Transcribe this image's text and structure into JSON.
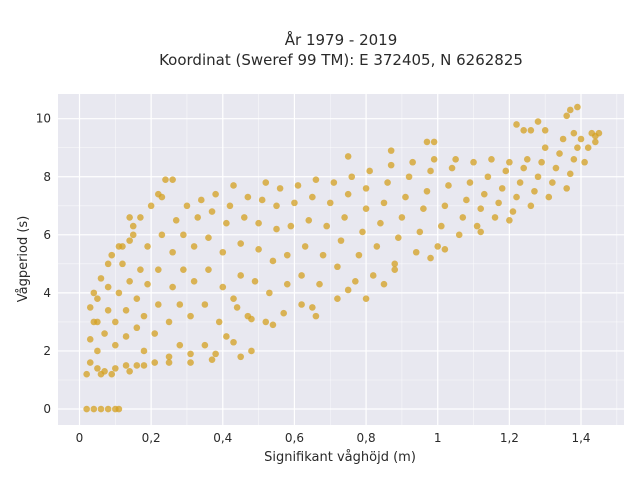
{
  "chart_data": {
    "type": "scatter",
    "title_line1": "År 1979 - 2019",
    "title_line2": "Koordinat (Sweref 99 TM): E 372405, N 6262825",
    "xlabel": "Signifikant våghöjd (m)",
    "ylabel": "Vågperiod (s)",
    "xlim": [
      -0.06,
      1.52
    ],
    "ylim": [
      -0.55,
      10.85
    ],
    "x_ticks": [
      0,
      0.2,
      0.4,
      0.6,
      0.8,
      1.0,
      1.2,
      1.4
    ],
    "x_tick_labels": [
      "0",
      "0,2",
      "0,4",
      "0,6",
      "0,8",
      "1",
      "1,2",
      "1,4"
    ],
    "y_ticks": [
      0,
      2,
      4,
      6,
      8,
      10
    ],
    "y_tick_labels": [
      "0",
      "2",
      "4",
      "6",
      "8",
      "10"
    ],
    "grid": true,
    "colors": {
      "marker": "#d4a020",
      "plot_background": "#e8e8f0",
      "grid": "#ffffff"
    },
    "series": [
      {
        "points": [
          [
            0.02,
            0.0
          ],
          [
            0.04,
            0.0
          ],
          [
            0.06,
            0.0
          ],
          [
            0.08,
            0.0
          ],
          [
            0.1,
            0.0
          ],
          [
            0.11,
            0.0
          ],
          [
            0.02,
            1.2
          ],
          [
            0.03,
            1.6
          ],
          [
            0.03,
            2.4
          ],
          [
            0.03,
            3.5
          ],
          [
            0.04,
            4.0
          ],
          [
            0.05,
            1.4
          ],
          [
            0.05,
            2.0
          ],
          [
            0.05,
            3.0
          ],
          [
            0.06,
            4.5
          ],
          [
            0.07,
            1.3
          ],
          [
            0.07,
            2.6
          ],
          [
            0.08,
            3.4
          ],
          [
            0.08,
            4.2
          ],
          [
            0.09,
            5.3
          ],
          [
            0.1,
            1.4
          ],
          [
            0.1,
            2.2
          ],
          [
            0.1,
            3.0
          ],
          [
            0.11,
            4.0
          ],
          [
            0.12,
            5.0
          ],
          [
            0.12,
            5.6
          ],
          [
            0.13,
            1.5
          ],
          [
            0.13,
            2.5
          ],
          [
            0.13,
            3.4
          ],
          [
            0.14,
            4.4
          ],
          [
            0.14,
            5.8
          ],
          [
            0.15,
            6.3
          ],
          [
            0.16,
            1.5
          ],
          [
            0.16,
            2.8
          ],
          [
            0.16,
            3.8
          ],
          [
            0.17,
            4.8
          ],
          [
            0.17,
            6.6
          ],
          [
            0.18,
            2.0
          ],
          [
            0.18,
            3.2
          ],
          [
            0.19,
            4.3
          ],
          [
            0.19,
            5.6
          ],
          [
            0.2,
            7.0
          ],
          [
            0.21,
            1.6
          ],
          [
            0.21,
            2.6
          ],
          [
            0.22,
            3.6
          ],
          [
            0.22,
            4.8
          ],
          [
            0.23,
            6.0
          ],
          [
            0.23,
            7.3
          ],
          [
            0.24,
            7.9
          ],
          [
            0.25,
            1.8
          ],
          [
            0.25,
            3.0
          ],
          [
            0.26,
            4.2
          ],
          [
            0.26,
            5.4
          ],
          [
            0.27,
            6.5
          ],
          [
            0.28,
            2.2
          ],
          [
            0.28,
            3.6
          ],
          [
            0.29,
            4.8
          ],
          [
            0.29,
            6.0
          ],
          [
            0.3,
            7.0
          ],
          [
            0.31,
            1.9
          ],
          [
            0.31,
            3.2
          ],
          [
            0.32,
            4.4
          ],
          [
            0.32,
            5.6
          ],
          [
            0.33,
            6.6
          ],
          [
            0.34,
            7.2
          ],
          [
            0.35,
            2.2
          ],
          [
            0.35,
            3.6
          ],
          [
            0.36,
            4.8
          ],
          [
            0.36,
            5.9
          ],
          [
            0.37,
            6.8
          ],
          [
            0.38,
            7.4
          ],
          [
            0.38,
            1.9
          ],
          [
            0.39,
            3.0
          ],
          [
            0.4,
            4.2
          ],
          [
            0.4,
            5.4
          ],
          [
            0.41,
            6.4
          ],
          [
            0.42,
            7.0
          ],
          [
            0.43,
            7.7
          ],
          [
            0.43,
            2.3
          ],
          [
            0.44,
            3.5
          ],
          [
            0.45,
            4.6
          ],
          [
            0.45,
            5.7
          ],
          [
            0.46,
            6.6
          ],
          [
            0.47,
            7.3
          ],
          [
            0.48,
            2.0
          ],
          [
            0.48,
            3.1
          ],
          [
            0.49,
            4.4
          ],
          [
            0.5,
            5.5
          ],
          [
            0.5,
            6.4
          ],
          [
            0.51,
            7.2
          ],
          [
            0.52,
            7.8
          ],
          [
            0.52,
            3.0
          ],
          [
            0.53,
            4.0
          ],
          [
            0.54,
            5.1
          ],
          [
            0.55,
            6.2
          ],
          [
            0.55,
            7.0
          ],
          [
            0.56,
            7.6
          ],
          [
            0.57,
            3.3
          ],
          [
            0.58,
            4.3
          ],
          [
            0.58,
            5.3
          ],
          [
            0.59,
            6.3
          ],
          [
            0.6,
            7.1
          ],
          [
            0.61,
            7.7
          ],
          [
            0.62,
            3.6
          ],
          [
            0.62,
            4.6
          ],
          [
            0.63,
            5.6
          ],
          [
            0.64,
            6.5
          ],
          [
            0.65,
            7.3
          ],
          [
            0.66,
            7.9
          ],
          [
            0.66,
            3.2
          ],
          [
            0.67,
            4.3
          ],
          [
            0.68,
            5.3
          ],
          [
            0.69,
            6.3
          ],
          [
            0.7,
            7.1
          ],
          [
            0.71,
            7.8
          ],
          [
            0.72,
            3.8
          ],
          [
            0.72,
            4.9
          ],
          [
            0.73,
            5.8
          ],
          [
            0.74,
            6.6
          ],
          [
            0.75,
            7.4
          ],
          [
            0.76,
            8.0
          ],
          [
            0.77,
            4.4
          ],
          [
            0.78,
            5.3
          ],
          [
            0.79,
            6.1
          ],
          [
            0.8,
            6.9
          ],
          [
            0.8,
            7.6
          ],
          [
            0.81,
            8.2
          ],
          [
            0.82,
            4.6
          ],
          [
            0.83,
            5.6
          ],
          [
            0.84,
            6.4
          ],
          [
            0.85,
            7.1
          ],
          [
            0.86,
            7.8
          ],
          [
            0.87,
            8.4
          ],
          [
            0.88,
            5.0
          ],
          [
            0.89,
            5.9
          ],
          [
            0.9,
            6.6
          ],
          [
            0.91,
            7.3
          ],
          [
            0.92,
            8.0
          ],
          [
            0.93,
            8.5
          ],
          [
            0.94,
            5.4
          ],
          [
            0.95,
            6.1
          ],
          [
            0.96,
            6.9
          ],
          [
            0.97,
            7.5
          ],
          [
            0.98,
            8.2
          ],
          [
            0.99,
            8.6
          ],
          [
            1.0,
            5.6
          ],
          [
            1.01,
            6.3
          ],
          [
            1.02,
            7.0
          ],
          [
            1.03,
            7.7
          ],
          [
            1.04,
            8.3
          ],
          [
            1.05,
            8.6
          ],
          [
            1.06,
            6.0
          ],
          [
            1.07,
            6.6
          ],
          [
            1.08,
            7.2
          ],
          [
            1.09,
            7.8
          ],
          [
            1.1,
            8.5
          ],
          [
            1.11,
            6.3
          ],
          [
            1.12,
            6.9
          ],
          [
            1.13,
            7.4
          ],
          [
            1.14,
            8.0
          ],
          [
            1.15,
            8.6
          ],
          [
            1.16,
            6.6
          ],
          [
            1.17,
            7.1
          ],
          [
            1.18,
            7.6
          ],
          [
            1.19,
            8.2
          ],
          [
            1.2,
            8.5
          ],
          [
            1.21,
            6.8
          ],
          [
            1.22,
            7.3
          ],
          [
            1.23,
            7.8
          ],
          [
            1.24,
            8.3
          ],
          [
            1.25,
            8.6
          ],
          [
            1.26,
            7.0
          ],
          [
            1.27,
            7.5
          ],
          [
            1.28,
            8.0
          ],
          [
            1.29,
            8.5
          ],
          [
            1.3,
            9.0
          ],
          [
            1.31,
            7.3
          ],
          [
            1.32,
            7.8
          ],
          [
            1.33,
            8.3
          ],
          [
            1.34,
            8.8
          ],
          [
            1.35,
            9.3
          ],
          [
            1.36,
            7.6
          ],
          [
            1.37,
            8.1
          ],
          [
            1.38,
            8.6
          ],
          [
            1.39,
            9.0
          ],
          [
            1.4,
            9.3
          ],
          [
            1.41,
            8.5
          ],
          [
            1.42,
            9.0
          ],
          [
            1.43,
            9.5
          ],
          [
            1.44,
            9.4
          ],
          [
            1.22,
            9.8
          ],
          [
            1.24,
            9.6
          ],
          [
            1.26,
            9.6
          ],
          [
            1.28,
            9.9
          ],
          [
            1.3,
            9.6
          ],
          [
            1.36,
            10.1
          ],
          [
            1.37,
            10.3
          ],
          [
            1.39,
            10.4
          ],
          [
            1.38,
            9.5
          ],
          [
            1.45,
            9.5
          ],
          [
            1.44,
            9.2
          ],
          [
            0.97,
            9.2
          ],
          [
            0.99,
            9.2
          ],
          [
            0.87,
            8.9
          ],
          [
            0.75,
            8.7
          ],
          [
            0.26,
            7.9
          ],
          [
            0.22,
            7.4
          ],
          [
            0.14,
            6.6
          ],
          [
            0.43,
            3.8
          ],
          [
            0.41,
            2.5
          ],
          [
            0.54,
            2.9
          ],
          [
            0.47,
            3.2
          ],
          [
            0.65,
            3.5
          ],
          [
            0.75,
            4.1
          ],
          [
            0.8,
            3.8
          ],
          [
            0.85,
            4.3
          ],
          [
            0.88,
            4.8
          ],
          [
            0.98,
            5.2
          ],
          [
            1.02,
            5.5
          ],
          [
            1.12,
            6.1
          ],
          [
            1.2,
            6.5
          ],
          [
            0.45,
            1.8
          ],
          [
            0.37,
            1.7
          ],
          [
            0.31,
            1.6
          ],
          [
            0.25,
            1.6
          ],
          [
            0.18,
            1.5
          ],
          [
            0.14,
            1.3
          ],
          [
            0.09,
            1.2
          ],
          [
            0.06,
            1.2
          ],
          [
            0.05,
            3.8
          ],
          [
            0.04,
            3.0
          ],
          [
            0.08,
            5.0
          ],
          [
            0.11,
            5.6
          ],
          [
            0.15,
            6.0
          ]
        ]
      }
    ]
  }
}
